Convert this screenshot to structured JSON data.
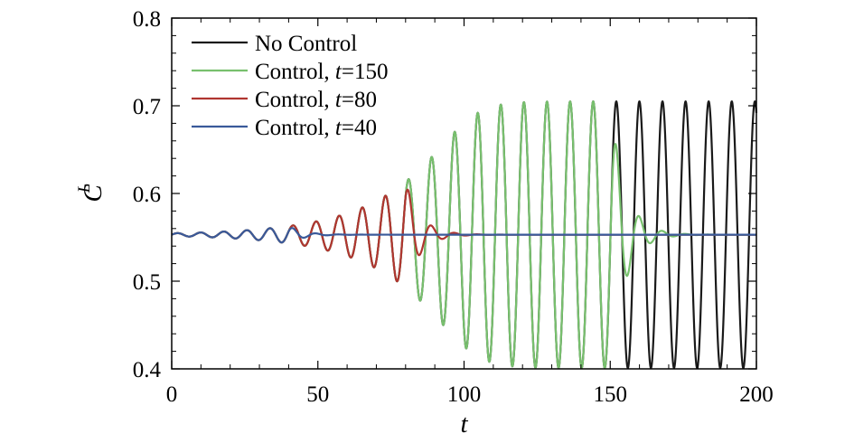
{
  "chart_data": {
    "type": "line",
    "title": "",
    "xlabel": "t",
    "ylabel": "C",
    "ylabel_sub": "L",
    "xlim": [
      0,
      200
    ],
    "ylim": [
      0.4,
      0.8
    ],
    "x_ticks": [
      0,
      50,
      100,
      150,
      200
    ],
    "y_ticks": [
      0.4,
      0.5,
      0.6,
      0.7,
      0.8
    ],
    "x_tick_labels": [
      "0",
      "50",
      "100",
      "150",
      "200"
    ],
    "y_tick_labels": [
      "0.4",
      "0.5",
      "0.6",
      "0.7",
      "0.8"
    ],
    "grid": false,
    "legend_position": "top-left",
    "signal": {
      "mean": 0.553,
      "period": 7.9,
      "initial_amplitude": 0.0016,
      "growth_rate": 0.0455,
      "saturated_amplitude": 0.152,
      "control_decay_rate": 0.2
    },
    "series": [
      {
        "name": "No Control",
        "name_prefix": "No Control",
        "name_var": "",
        "name_value": "",
        "color": "#1a1a1a",
        "control_start": null
      },
      {
        "name": "Control, t=150",
        "name_prefix": "Control, ",
        "name_var": "t",
        "name_value": "=150",
        "color": "#78c06e",
        "control_start": 150
      },
      {
        "name": "Control, t=80",
        "name_prefix": "Control, ",
        "name_var": "t",
        "name_value": "=80",
        "color": "#b03530",
        "control_start": 80
      },
      {
        "name": "Control, t=40",
        "name_prefix": "Control, ",
        "name_var": "t",
        "name_value": "=40",
        "color": "#3a5a9a",
        "control_start": 40
      }
    ]
  }
}
